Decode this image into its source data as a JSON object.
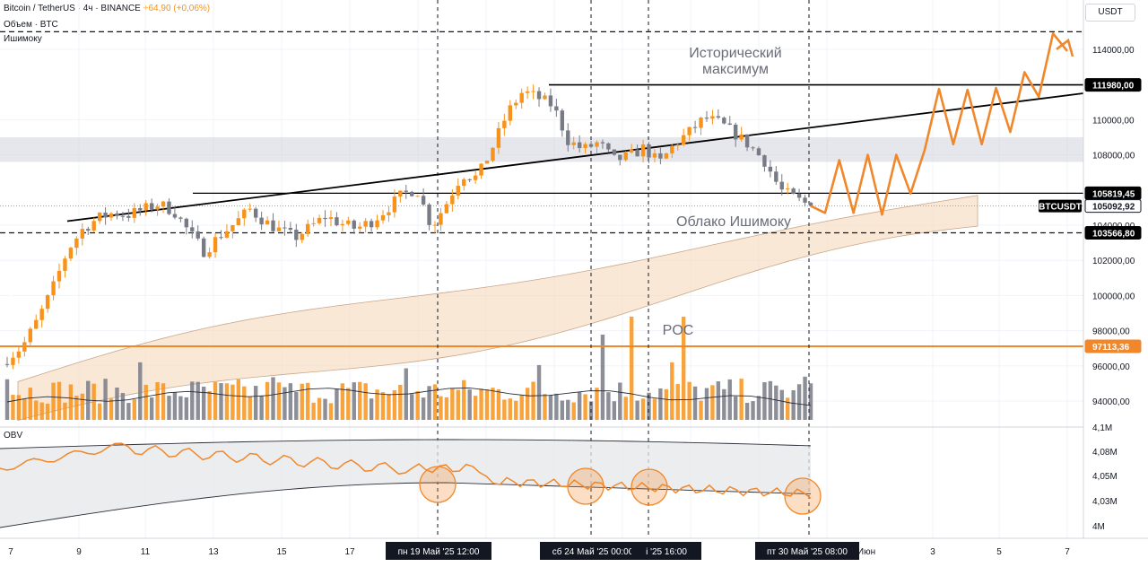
{
  "header": {
    "line1_symbol": "Bitcoin / TetherUS · 4ч · BINANCE",
    "line1_change": "+64,90 (+0,06%)",
    "line2": "Объем · BTC",
    "line3": "Ишимоку",
    "unit": "USDT"
  },
  "annotations": {
    "ath_line1": "Исторический",
    "ath_line2": "максимум",
    "cloud": "Облако Ишимоку",
    "poc": "POC",
    "obv": "OBV",
    "symbol_tag": "BTCUSDT"
  },
  "colors": {
    "up": "#f7931a",
    "down": "#787b86",
    "orange": "#f0882b",
    "cloud": "#f6d9bd",
    "zone": "#d1d4dc"
  },
  "chart_data": {
    "type": "candlestick",
    "symbol": "Bitcoin / TetherUS",
    "timeframe": "4ч",
    "exchange": "BINANCE",
    "ylim": [
      92000,
      116000
    ],
    "y_ticks": [
      94000,
      96000,
      98000,
      100000,
      102000,
      104000,
      108000,
      110000,
      114000
    ],
    "y_tick_labels": [
      "94000,00",
      "96000,00",
      "98000,00",
      "100000,00",
      "102000,00",
      "104000,00",
      "108000,00",
      "110000,00",
      "114000,00"
    ],
    "price_labels": [
      {
        "value": 111980,
        "text": "111980,00",
        "bg": "#000000"
      },
      {
        "value": 105819.45,
        "text": "105819,45",
        "bg": "#000000"
      },
      {
        "value": 105092.92,
        "text": "105092,92",
        "bg": "#ffffff"
      },
      {
        "value": 103566.8,
        "text": "103566,80",
        "bg": "#000000"
      },
      {
        "value": 97113.36,
        "text": "97113,36",
        "bg": "#f0882b"
      }
    ],
    "key_levels": {
      "historical_max": 111980,
      "support": 103566.8,
      "poc": 97113.36,
      "projection_top": 115000
    },
    "x_tick_labels": [
      "7",
      "9",
      "11",
      "13",
      "15",
      "17",
      "Июн",
      "3",
      "5",
      "7"
    ],
    "x_highlight_labels": [
      "пн 19 Май '25   12:00",
      "сб 24 Май '25   00:00",
      "і '25   16:00",
      "пт 30 Май '25   08:00"
    ],
    "close_path": [
      96400,
      97100,
      98600,
      100400,
      102600,
      103800,
      104400,
      104700,
      104600,
      104900,
      105200,
      104800,
      103600,
      102500,
      103400,
      104100,
      104900,
      104200,
      103700,
      103300,
      103900,
      104500,
      104100,
      103800,
      104200,
      104900,
      105700,
      106100,
      103900,
      105300,
      106900,
      106700,
      108400,
      110400,
      111600,
      111250,
      110800,
      108800,
      108300,
      108700,
      107700,
      107900,
      108400,
      107500,
      108600,
      109300,
      110100,
      109800,
      109200,
      108500,
      107600,
      106000,
      105500,
      105093
    ],
    "projection_path": [
      105093,
      104700,
      107700,
      104700,
      108000,
      104600,
      108000,
      105800,
      108300,
      111750,
      108600,
      111700,
      108600,
      111800,
      109300,
      112700,
      111300,
      114900,
      113900
    ],
    "volume_axis_labels": [
      "4,1M",
      "4,08M",
      "4,05M",
      "4,03M",
      "4M"
    ],
    "obv_highlight_dates": [
      "19 May '25 12:00",
      "24 May '25 00:00",
      "26 May '25 16:00",
      "30 May '25 08:00"
    ]
  }
}
